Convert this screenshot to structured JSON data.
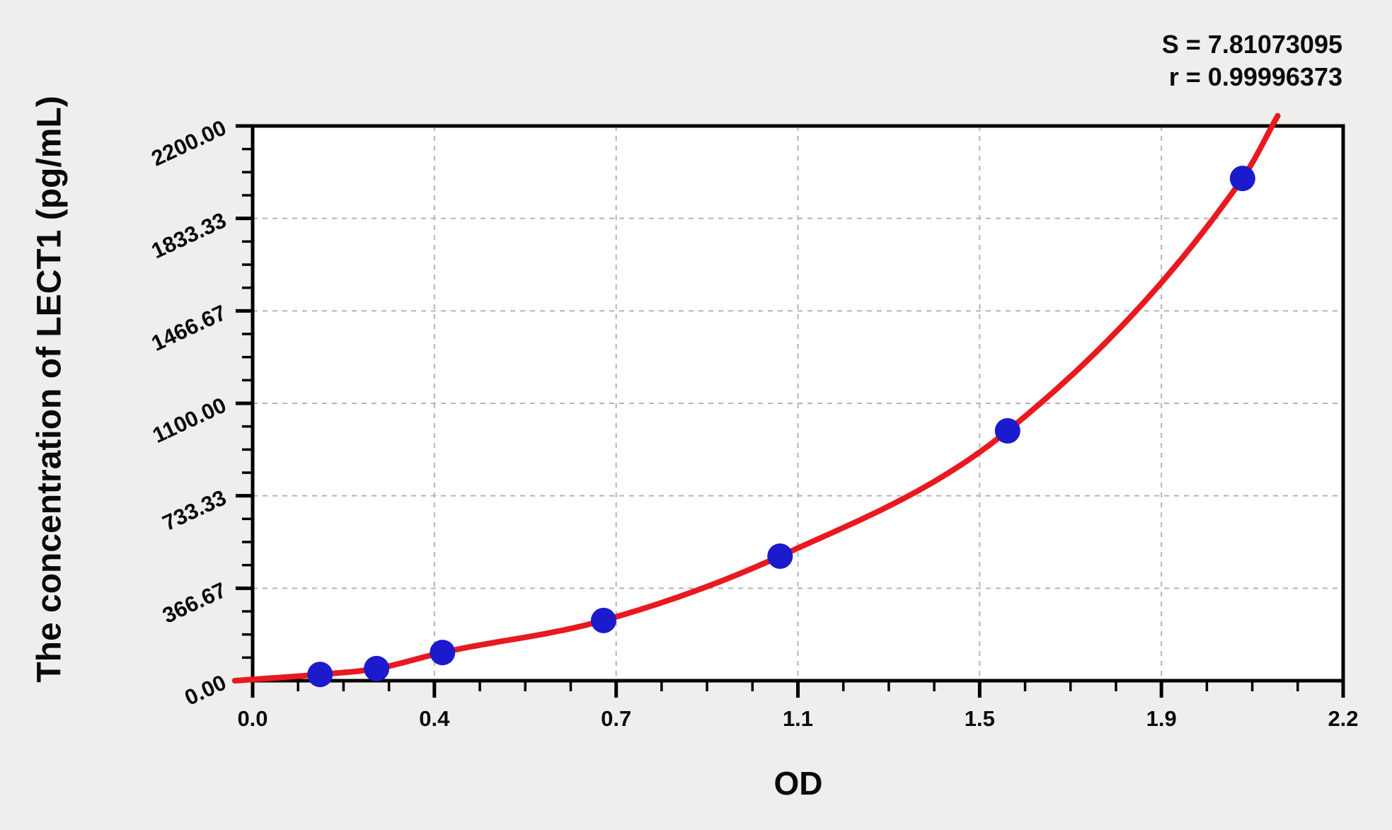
{
  "chart_data": {
    "type": "scatter",
    "description": "ELISA standard curve: measured optical density vs analyte concentration with fitted regression curve",
    "x_axis": {
      "label": "OD",
      "min": 0,
      "max": 2.2,
      "tick_labels": [
        "0.0",
        "0.4",
        "0.7",
        "1.1",
        "1.5",
        "1.9",
        "2.2"
      ],
      "minor_ticks_between_majors": 3
    },
    "y_axis": {
      "label": "The concentration of LECT1 (pg/mL)",
      "min": 0,
      "max": 2200,
      "tick_labels": [
        "0.00",
        "366.67",
        "733.33",
        "1100.00",
        "1466.67",
        "1833.33",
        "2200.00"
      ],
      "minor_ticks_between_majors": 3
    },
    "grid": true,
    "legend": false,
    "series": [
      {
        "name": "standard-points",
        "type": "scatter",
        "color": "#1b1acd",
        "points": [
          {
            "od": 0.136,
            "conc": 25
          },
          {
            "od": 0.25,
            "conc": 48
          },
          {
            "od": 0.383,
            "conc": 112
          },
          {
            "od": 0.708,
            "conc": 239
          },
          {
            "od": 1.064,
            "conc": 494
          },
          {
            "od": 1.523,
            "conc": 991
          },
          {
            "od": 1.997,
            "conc": 1992
          }
        ]
      },
      {
        "name": "fitted-curve",
        "type": "line",
        "color": "#e8191f",
        "points": [
          [
            -0.036,
            0
          ],
          [
            0.136,
            25
          ],
          [
            0.25,
            48
          ],
          [
            0.383,
            112
          ],
          [
            0.708,
            239
          ],
          [
            1.064,
            494
          ],
          [
            1.523,
            991
          ],
          [
            1.997,
            1992
          ],
          [
            2.068,
            2240
          ]
        ]
      }
    ],
    "stats": {
      "S": 7.81073095,
      "r": 0.99996373,
      "s_text": "S = 7.81073095",
      "r_text": "r = 0.99996373"
    },
    "colors": {
      "background": "#f0eeec",
      "plot_background": "#ffffff",
      "axis": "#000000",
      "gridline": "#b4b4b4",
      "curve": "#e8191f",
      "points": "#1b1acd"
    }
  }
}
